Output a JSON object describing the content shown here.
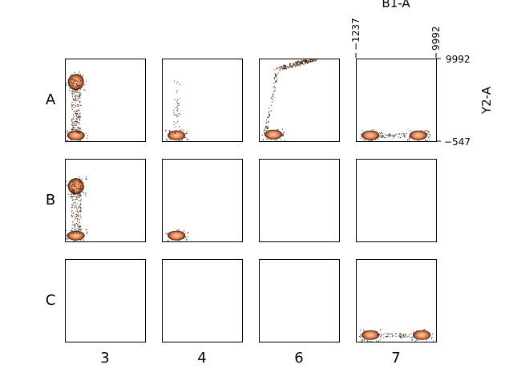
{
  "chart_data": {
    "type": "heatmap",
    "description_kind": "flow-cytometry plate grid, density scatter per well",
    "rows": [
      "A",
      "B",
      "C"
    ],
    "columns": [
      "3",
      "4",
      "6",
      "7"
    ],
    "x_axis": {
      "label": "B1-A",
      "tick_labels": [
        "−1237",
        "9992"
      ],
      "range": [
        -1237,
        9992
      ]
    },
    "y_axis": {
      "label": "Y2-A",
      "tick_labels": [
        "−547",
        "9992"
      ],
      "range": [
        -547,
        9992
      ]
    },
    "colormap": [
      "#2b1407",
      "#7a3f1f",
      "#c06a3e",
      "#ee9a6a",
      "#ffc89e"
    ],
    "wells": [
      {
        "row": "A",
        "col": "3",
        "has_data": true,
        "populations": [
          {
            "x": 300,
            "y": 7000,
            "density": "high"
          },
          {
            "x": 300,
            "y": 200,
            "density": "high"
          },
          {
            "x": 300,
            "y": 3500,
            "density": "low-streak"
          }
        ]
      },
      {
        "row": "A",
        "col": "4",
        "has_data": true,
        "populations": [
          {
            "x": 800,
            "y": 200,
            "density": "high"
          },
          {
            "x": 800,
            "y": 5000,
            "density": "sparse"
          }
        ]
      },
      {
        "row": "A",
        "col": "6",
        "has_data": true,
        "populations": [
          {
            "x": 800,
            "y": 300,
            "density": "high"
          },
          {
            "x": 4000,
            "y": 9800,
            "density": "medium-diagonal"
          }
        ]
      },
      {
        "row": "A",
        "col": "7",
        "has_data": true,
        "populations": [
          {
            "x": 800,
            "y": 200,
            "density": "high"
          },
          {
            "x": 7500,
            "y": 200,
            "density": "high"
          }
        ]
      },
      {
        "row": "B",
        "col": "3",
        "has_data": true,
        "populations": [
          {
            "x": 300,
            "y": 6500,
            "density": "high"
          },
          {
            "x": 300,
            "y": 200,
            "density": "high"
          },
          {
            "x": 300,
            "y": 3000,
            "density": "low-streak"
          }
        ]
      },
      {
        "row": "B",
        "col": "4",
        "has_data": true,
        "populations": [
          {
            "x": 800,
            "y": 200,
            "density": "high"
          }
        ]
      },
      {
        "row": "B",
        "col": "6",
        "has_data": false,
        "populations": []
      },
      {
        "row": "B",
        "col": "7",
        "has_data": false,
        "populations": []
      },
      {
        "row": "C",
        "col": "3",
        "has_data": false,
        "populations": []
      },
      {
        "row": "C",
        "col": "4",
        "has_data": false,
        "populations": []
      },
      {
        "row": "C",
        "col": "6",
        "has_data": false,
        "populations": []
      },
      {
        "row": "C",
        "col": "7",
        "has_data": true,
        "populations": [
          {
            "x": 800,
            "y": 300,
            "density": "high"
          },
          {
            "x": 8000,
            "y": 300,
            "density": "high"
          }
        ]
      }
    ]
  }
}
